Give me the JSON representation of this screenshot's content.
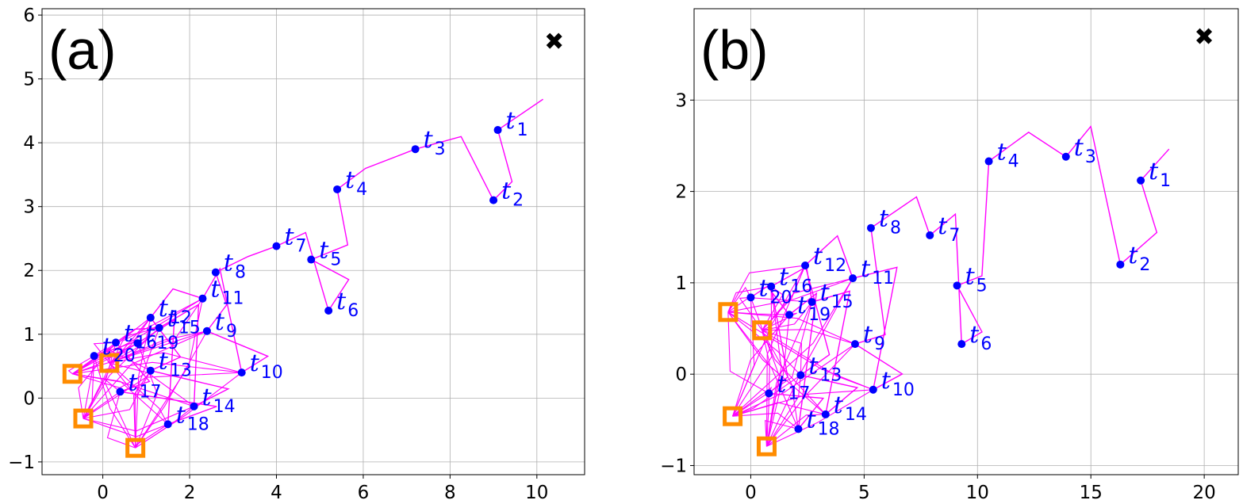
{
  "chart_data": [
    {
      "type": "scatter",
      "panel_label": "(a)",
      "xlim": [
        -1.4,
        11.1
      ],
      "ylim": [
        -1.2,
        6.1
      ],
      "xticks": [
        0,
        2,
        4,
        6,
        8,
        10
      ],
      "yticks": [
        -1,
        0,
        1,
        2,
        3,
        4,
        5,
        6
      ],
      "grid": true,
      "target_marker": {
        "x": 10.4,
        "y": 5.6,
        "symbol": "✖"
      },
      "points_color": "#0000ff",
      "path_color": "#ff00ff",
      "square_color": "#ff8c00",
      "points": [
        {
          "label": "t",
          "sub": "1",
          "x": 9.1,
          "y": 4.2
        },
        {
          "label": "t",
          "sub": "2",
          "x": 9.0,
          "y": 3.1
        },
        {
          "label": "t",
          "sub": "3",
          "x": 7.2,
          "y": 3.9
        },
        {
          "label": "t",
          "sub": "4",
          "x": 5.4,
          "y": 3.27
        },
        {
          "label": "t",
          "sub": "5",
          "x": 4.8,
          "y": 2.17
        },
        {
          "label": "t",
          "sub": "6",
          "x": 5.2,
          "y": 1.37
        },
        {
          "label": "t",
          "sub": "7",
          "x": 4.0,
          "y": 2.38
        },
        {
          "label": "t",
          "sub": "8",
          "x": 2.6,
          "y": 1.97
        },
        {
          "label": "t",
          "sub": "9",
          "x": 2.4,
          "y": 1.05
        },
        {
          "label": "t",
          "sub": "10",
          "x": 3.2,
          "y": 0.4
        },
        {
          "label": "t",
          "sub": "11",
          "x": 2.3,
          "y": 1.56
        },
        {
          "label": "t",
          "sub": "12",
          "x": 1.1,
          "y": 1.26
        },
        {
          "label": "t",
          "sub": "13",
          "x": 1.1,
          "y": 0.43
        },
        {
          "label": "t",
          "sub": "14",
          "x": 2.1,
          "y": -0.13
        },
        {
          "label": "t",
          "sub": "15",
          "x": 1.3,
          "y": 1.1
        },
        {
          "label": "t",
          "sub": "16",
          "x": 0.3,
          "y": 0.87
        },
        {
          "label": "t",
          "sub": "17",
          "x": 0.4,
          "y": 0.1
        },
        {
          "label": "t",
          "sub": "18",
          "x": 1.5,
          "y": -0.41
        },
        {
          "label": "t",
          "sub": "19",
          "x": 0.8,
          "y": 0.86
        },
        {
          "label": "t",
          "sub": "20",
          "x": -0.2,
          "y": 0.66
        }
      ],
      "squares": [
        {
          "x": -0.7,
          "y": 0.38
        },
        {
          "x": 0.15,
          "y": 0.55
        },
        {
          "x": -0.45,
          "y": -0.32
        },
        {
          "x": 0.75,
          "y": -0.78
        }
      ]
    },
    {
      "type": "scatter",
      "panel_label": "(b)",
      "xlim": [
        -2.5,
        21.5
      ],
      "ylim": [
        -1.1,
        4.0
      ],
      "xticks": [
        0,
        5,
        10,
        15,
        20
      ],
      "yticks": [
        -1,
        0,
        1,
        2,
        3
      ],
      "grid": true,
      "target_marker": {
        "x": 20.0,
        "y": 3.7,
        "symbol": "✖"
      },
      "points_color": "#0000ff",
      "path_color": "#ff00ff",
      "square_color": "#ff8c00",
      "points": [
        {
          "label": "t",
          "sub": "1",
          "x": 17.2,
          "y": 2.12
        },
        {
          "label": "t",
          "sub": "2",
          "x": 16.3,
          "y": 1.2
        },
        {
          "label": "t",
          "sub": "3",
          "x": 13.9,
          "y": 2.38
        },
        {
          "label": "t",
          "sub": "4",
          "x": 10.5,
          "y": 2.33
        },
        {
          "label": "t",
          "sub": "5",
          "x": 9.1,
          "y": 0.97
        },
        {
          "label": "t",
          "sub": "6",
          "x": 9.3,
          "y": 0.33
        },
        {
          "label": "t",
          "sub": "7",
          "x": 7.9,
          "y": 1.52
        },
        {
          "label": "t",
          "sub": "8",
          "x": 5.3,
          "y": 1.6
        },
        {
          "label": "t",
          "sub": "9",
          "x": 4.6,
          "y": 0.33
        },
        {
          "label": "t",
          "sub": "10",
          "x": 5.4,
          "y": -0.17
        },
        {
          "label": "t",
          "sub": "11",
          "x": 4.5,
          "y": 1.05
        },
        {
          "label": "t",
          "sub": "12",
          "x": 2.4,
          "y": 1.19
        },
        {
          "label": "t",
          "sub": "13",
          "x": 2.2,
          "y": -0.01
        },
        {
          "label": "t",
          "sub": "14",
          "x": 3.3,
          "y": -0.44
        },
        {
          "label": "t",
          "sub": "15",
          "x": 2.7,
          "y": 0.79
        },
        {
          "label": "t",
          "sub": "16",
          "x": 0.9,
          "y": 0.96
        },
        {
          "label": "t",
          "sub": "17",
          "x": 0.8,
          "y": -0.21
        },
        {
          "label": "t",
          "sub": "18",
          "x": 2.1,
          "y": -0.6
        },
        {
          "label": "t",
          "sub": "19",
          "x": 1.7,
          "y": 0.65
        },
        {
          "label": "t",
          "sub": "20",
          "x": 0.0,
          "y": 0.84
        }
      ],
      "squares": [
        {
          "x": -1.0,
          "y": 0.68
        },
        {
          "x": 0.5,
          "y": 0.48
        },
        {
          "x": -0.8,
          "y": -0.46
        },
        {
          "x": 0.7,
          "y": -0.79
        }
      ]
    }
  ]
}
